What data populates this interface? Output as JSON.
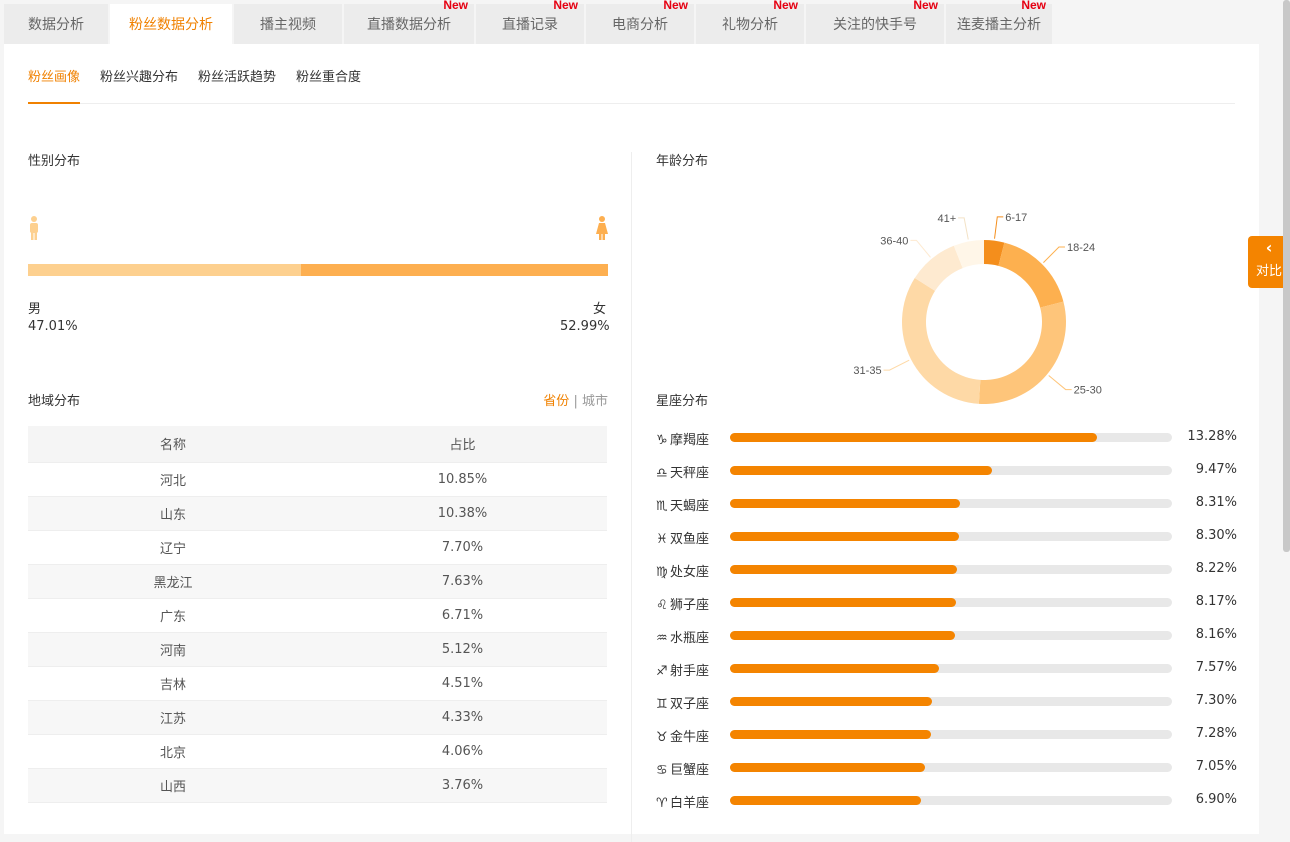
{
  "top_tabs": [
    {
      "label": "数据分析",
      "new": ""
    },
    {
      "label": "粉丝数据分析",
      "new": ""
    },
    {
      "label": "播主视频",
      "new": ""
    },
    {
      "label": "直播数据分析",
      "new": "New"
    },
    {
      "label": "直播记录",
      "new": "New"
    },
    {
      "label": "电商分析",
      "new": "New"
    },
    {
      "label": "礼物分析",
      "new": "New"
    },
    {
      "label": "关注的快手号",
      "new": "New"
    },
    {
      "label": "连麦播主分析",
      "new": "New"
    }
  ],
  "sub_tabs": [
    "粉丝画像",
    "粉丝兴趣分布",
    "粉丝活跃趋势",
    "粉丝重合度"
  ],
  "gender": {
    "title": "性别分布",
    "male_label": "男",
    "male_value": "47.01%",
    "male_fraction": 0.4701,
    "female_label": "女",
    "female_value": "52.99%",
    "male_color": "#fdd08f",
    "female_color": "#fdaf50"
  },
  "region": {
    "title": "地域分布",
    "switch_province": "省份",
    "switch_sep": "|",
    "switch_city": "城市",
    "col_name": "名称",
    "col_ratio": "占比",
    "rows": [
      {
        "name": "河北",
        "ratio": "10.85%"
      },
      {
        "name": "山东",
        "ratio": "10.38%"
      },
      {
        "name": "辽宁",
        "ratio": "7.70%"
      },
      {
        "name": "黑龙江",
        "ratio": "7.63%"
      },
      {
        "name": "广东",
        "ratio": "6.71%"
      },
      {
        "name": "河南",
        "ratio": "5.12%"
      },
      {
        "name": "吉林",
        "ratio": "4.51%"
      },
      {
        "name": "江苏",
        "ratio": "4.33%"
      },
      {
        "name": "北京",
        "ratio": "4.06%"
      },
      {
        "name": "山西",
        "ratio": "3.76%"
      }
    ]
  },
  "age": {
    "title": "年龄分布"
  },
  "chart_data": {
    "type": "pie",
    "categories": [
      "6-17",
      "18-24",
      "25-30",
      "31-35",
      "36-40",
      "41+"
    ],
    "values": [
      4,
      17,
      30,
      33,
      10,
      6
    ],
    "colors": [
      "#f48e1c",
      "#fdb04f",
      "#fec57a",
      "#fed9a6",
      "#feead0",
      "#fff6e8"
    ]
  },
  "zodiac": {
    "title": "星座分布",
    "items": [
      {
        "symbol": "♑",
        "name": "摩羯座",
        "value": "13.28%",
        "pct": 13.28
      },
      {
        "symbol": "♎",
        "name": "天秤座",
        "value": "9.47%",
        "pct": 9.47
      },
      {
        "symbol": "♏",
        "name": "天蝎座",
        "value": "8.31%",
        "pct": 8.31
      },
      {
        "symbol": "♓",
        "name": "双鱼座",
        "value": "8.30%",
        "pct": 8.3
      },
      {
        "symbol": "♍",
        "name": "处女座",
        "value": "8.22%",
        "pct": 8.22
      },
      {
        "symbol": "♌",
        "name": "狮子座",
        "value": "8.17%",
        "pct": 8.17
      },
      {
        "symbol": "♒",
        "name": "水瓶座",
        "value": "8.16%",
        "pct": 8.16
      },
      {
        "symbol": "♐",
        "name": "射手座",
        "value": "7.57%",
        "pct": 7.57
      },
      {
        "symbol": "♊",
        "name": "双子座",
        "value": "7.30%",
        "pct": 7.3
      },
      {
        "symbol": "♉",
        "name": "金牛座",
        "value": "7.28%",
        "pct": 7.28
      },
      {
        "symbol": "♋",
        "name": "巨蟹座",
        "value": "7.05%",
        "pct": 7.05
      },
      {
        "symbol": "♈",
        "name": "白羊座",
        "value": "6.90%",
        "pct": 6.9
      }
    ],
    "bar_color": "#f48400"
  },
  "compare_button": "对比"
}
